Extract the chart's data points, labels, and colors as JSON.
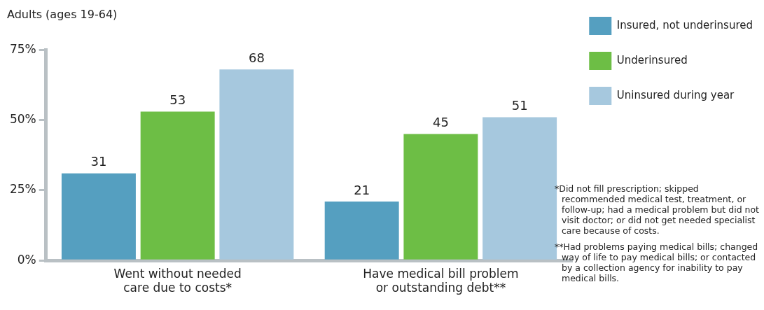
{
  "chart_data": {
    "type": "bar",
    "title": "Adults (ages 19-64)",
    "categories": [
      "Went without needed care due to costs*",
      "Have medical bill problem or outstanding debt**"
    ],
    "series": [
      {
        "name": "Insured, not underinsured",
        "color": "#559fc0",
        "values": [
          31,
          21
        ]
      },
      {
        "name": "Underinsured",
        "color": "#6dbe45",
        "values": [
          53,
          45
        ]
      },
      {
        "name": "Uninsured during year",
        "color": "#a6c8de",
        "values": [
          68,
          51
        ]
      }
    ],
    "ylim": [
      0,
      75
    ],
    "yticks": [
      {
        "value": 0,
        "label": "0%"
      },
      {
        "value": 25,
        "label": "25%"
      },
      {
        "value": 50,
        "label": "50%"
      },
      {
        "value": 75,
        "label": "75%"
      }
    ],
    "grid": false,
    "legend": "right",
    "data_labels": true,
    "annotations": [
      "*Did not fill prescription; skipped recommended medical test, treatment, or follow-up; had a medical problem but did not visit doctor; or did not get needed specialist care because of costs.",
      "**Had problems paying medical bills; changed way of life to pay medical bills; or contacted by a collection agency for inability to pay medical bills."
    ]
  }
}
